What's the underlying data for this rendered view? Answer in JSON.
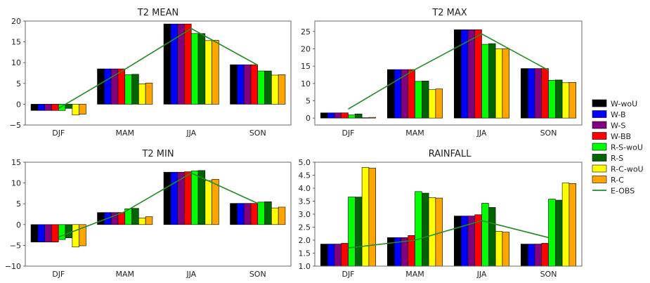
{
  "chart_data": [
    {
      "type": "bar",
      "title": "T2 MEAN",
      "categories": [
        "DJF",
        "MAM",
        "JJA",
        "SON"
      ],
      "ylim": [
        -5,
        20
      ],
      "yticks": [
        -5,
        0,
        5,
        10,
        15,
        20
      ],
      "ytick_labels": [
        "−5",
        "0",
        "5",
        "10",
        "15",
        "20"
      ],
      "grid": "off",
      "series": [
        {
          "name": "W-woU",
          "values": [
            -1.5,
            8.5,
            19.3,
            9.5
          ]
        },
        {
          "name": "W-B",
          "values": [
            -1.5,
            8.5,
            19.3,
            9.5
          ]
        },
        {
          "name": "W-S",
          "values": [
            -1.5,
            8.5,
            19.3,
            9.5
          ]
        },
        {
          "name": "W-BB",
          "values": [
            -1.5,
            8.5,
            19.3,
            9.5
          ]
        },
        {
          "name": "R-S-woU",
          "values": [
            -1.5,
            7.1,
            17.0,
            8.0
          ]
        },
        {
          "name": "R-S",
          "values": [
            -1.0,
            7.2,
            17.0,
            8.0
          ]
        },
        {
          "name": "R-C-woU",
          "values": [
            -2.6,
            4.9,
            15.3,
            7.0
          ]
        },
        {
          "name": "R-C",
          "values": [
            -2.4,
            5.1,
            15.4,
            7.1
          ]
        }
      ],
      "obs": {
        "name": "E-OBS",
        "values": [
          -1.0,
          8.4,
          18.2,
          9.4
        ]
      }
    },
    {
      "type": "bar",
      "title": "T2 MAX",
      "categories": [
        "DJF",
        "MAM",
        "JJA",
        "SON"
      ],
      "ylim": [
        -2,
        28
      ],
      "yticks": [
        0,
        5,
        10,
        15,
        20,
        25
      ],
      "ytick_labels": [
        "0",
        "5",
        "10",
        "15",
        "20",
        "25"
      ],
      "grid": "off",
      "series": [
        {
          "name": "W-woU",
          "values": [
            1.5,
            14.0,
            25.5,
            14.3
          ]
        },
        {
          "name": "W-B",
          "values": [
            1.5,
            14.0,
            25.5,
            14.3
          ]
        },
        {
          "name": "W-S",
          "values": [
            1.5,
            14.0,
            25.5,
            14.3
          ]
        },
        {
          "name": "W-BB",
          "values": [
            1.5,
            14.0,
            25.5,
            14.3
          ]
        },
        {
          "name": "R-S-woU",
          "values": [
            0.9,
            10.6,
            21.3,
            10.9
          ]
        },
        {
          "name": "R-S",
          "values": [
            1.2,
            10.7,
            21.5,
            11.0
          ]
        },
        {
          "name": "R-C-woU",
          "values": [
            0.1,
            8.2,
            20.0,
            10.2
          ]
        },
        {
          "name": "R-C",
          "values": [
            0.2,
            8.4,
            20.0,
            10.3
          ]
        }
      ],
      "obs": {
        "name": "E-OBS",
        "values": [
          2.6,
          14.0,
          24.3,
          13.8
        ]
      }
    },
    {
      "type": "bar",
      "title": "T2 MIN",
      "categories": [
        "DJF",
        "MAM",
        "JJA",
        "SON"
      ],
      "ylim": [
        -10,
        15
      ],
      "yticks": [
        -10,
        -5,
        0,
        5,
        10,
        15
      ],
      "ytick_labels": [
        "−10",
        "−5",
        "0",
        "5",
        "10",
        "15"
      ],
      "grid": "off",
      "series": [
        {
          "name": "W-woU",
          "values": [
            -4.2,
            2.9,
            12.6,
            5.1
          ]
        },
        {
          "name": "W-B",
          "values": [
            -4.2,
            2.9,
            12.6,
            5.1
          ]
        },
        {
          "name": "W-S",
          "values": [
            -4.2,
            2.9,
            12.6,
            5.1
          ]
        },
        {
          "name": "W-BB",
          "values": [
            -4.2,
            2.9,
            12.7,
            5.1
          ]
        },
        {
          "name": "R-S-woU",
          "values": [
            -3.6,
            3.8,
            12.9,
            5.4
          ]
        },
        {
          "name": "R-S",
          "values": [
            -3.2,
            3.9,
            13.0,
            5.5
          ]
        },
        {
          "name": "R-C-woU",
          "values": [
            -5.4,
            1.6,
            10.6,
            4.0
          ]
        },
        {
          "name": "R-C",
          "values": [
            -5.1,
            1.9,
            10.9,
            4.2
          ]
        }
      ],
      "obs": {
        "name": "E-OBS",
        "values": [
          -3.0,
          3.1,
          12.4,
          5.1
        ]
      }
    },
    {
      "type": "bar",
      "title": "RAINFALL",
      "categories": [
        "DJF",
        "MAM",
        "JJA",
        "SON"
      ],
      "ylim": [
        1.0,
        5.0
      ],
      "yticks": [
        1.0,
        1.5,
        2.0,
        2.5,
        3.0,
        3.5,
        4.0,
        4.5,
        5.0
      ],
      "ytick_labels": [
        "1.0",
        "1.5",
        "2.0",
        "2.5",
        "3.0",
        "3.5",
        "4.0",
        "4.5",
        "5.0"
      ],
      "grid": "off",
      "series": [
        {
          "name": "W-woU",
          "values": [
            1.85,
            2.1,
            2.93,
            1.85
          ]
        },
        {
          "name": "W-B",
          "values": [
            1.85,
            2.1,
            2.93,
            1.85
          ]
        },
        {
          "name": "W-S",
          "values": [
            1.85,
            2.1,
            2.93,
            1.85
          ]
        },
        {
          "name": "W-BB",
          "values": [
            1.88,
            2.18,
            2.98,
            1.88
          ]
        },
        {
          "name": "R-S-woU",
          "values": [
            3.66,
            3.87,
            3.42,
            3.58
          ]
        },
        {
          "name": "R-S",
          "values": [
            3.66,
            3.81,
            3.26,
            3.54
          ]
        },
        {
          "name": "R-C-woU",
          "values": [
            4.8,
            3.64,
            2.34,
            4.2
          ]
        },
        {
          "name": "R-C",
          "values": [
            4.77,
            3.62,
            2.31,
            4.18
          ]
        }
      ],
      "obs": {
        "name": "E-OBS",
        "values": [
          1.7,
          2.0,
          2.75,
          2.1
        ]
      }
    }
  ],
  "legend": {
    "placement": "right",
    "entries": [
      {
        "name": "W-woU",
        "color": "#000000"
      },
      {
        "name": "W-B",
        "color": "#0000ff"
      },
      {
        "name": "W-S",
        "color": "#800080"
      },
      {
        "name": "W-BB",
        "color": "#ff0000"
      },
      {
        "name": "R-S-woU",
        "color": "#00ff00"
      },
      {
        "name": "R-S",
        "color": "#006400"
      },
      {
        "name": "R-C-woU",
        "color": "#ffff00"
      },
      {
        "name": "R-C",
        "color": "#ffa500"
      },
      {
        "name": "E-OBS",
        "color": "#228b22",
        "style": "line"
      }
    ]
  }
}
